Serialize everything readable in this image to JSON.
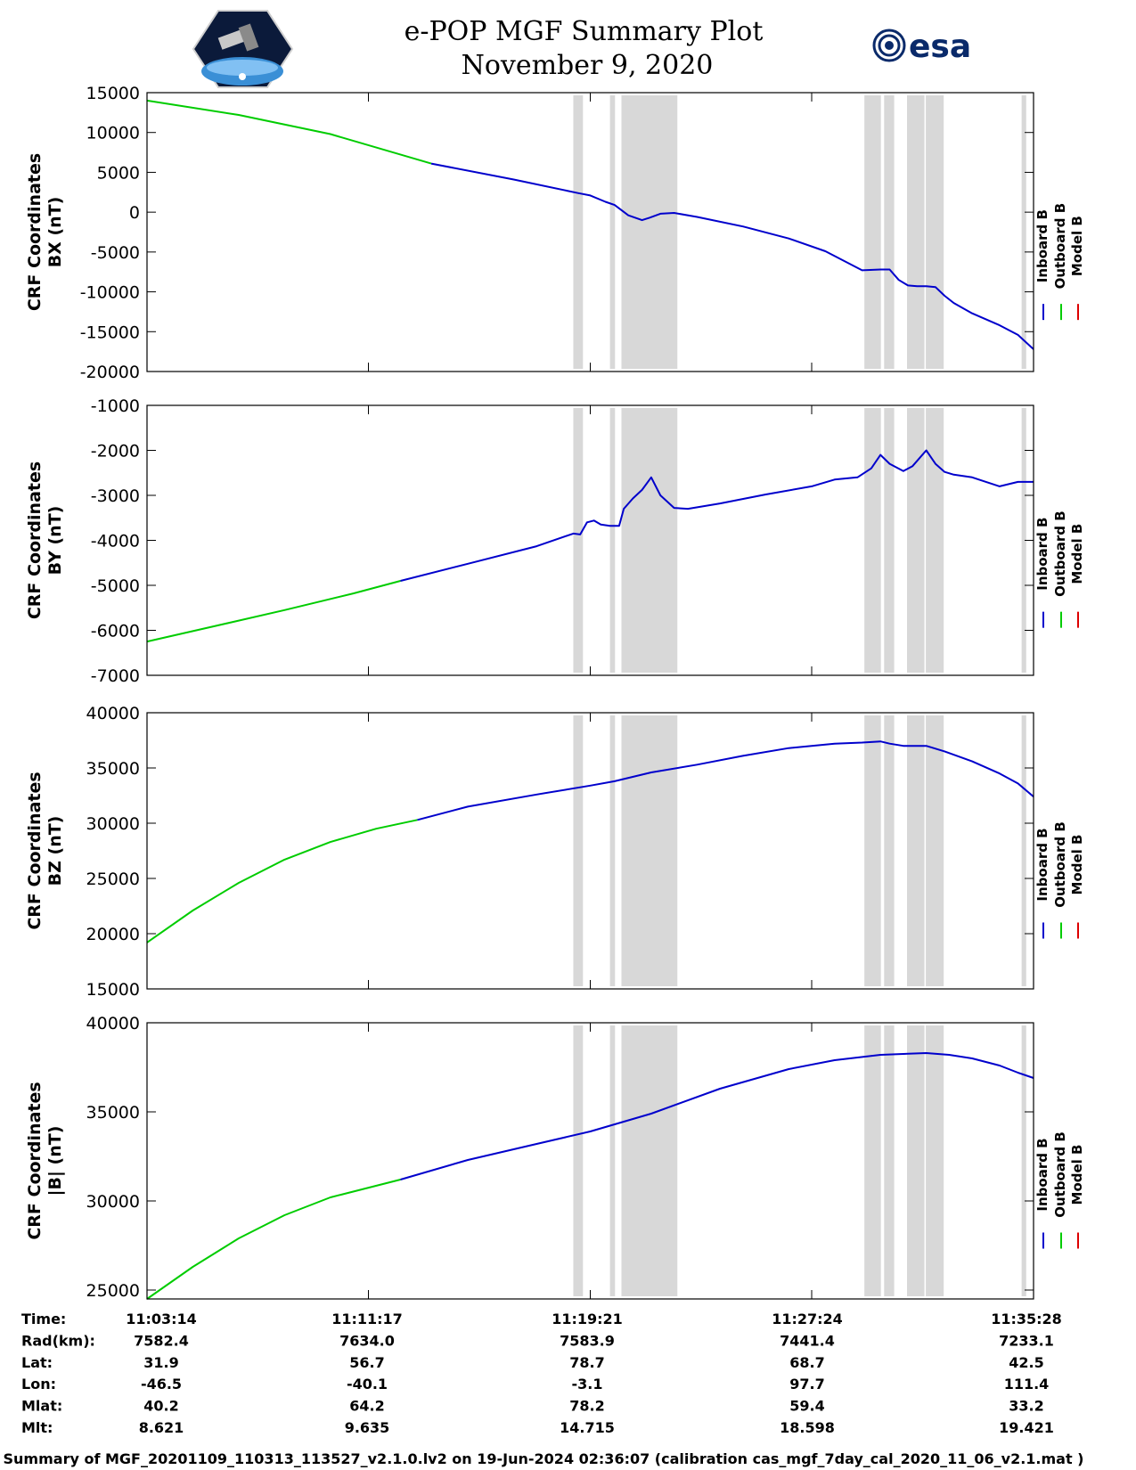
{
  "header": {
    "title": "e-POP MGF Summary Plot",
    "date": "November 9, 2020",
    "left_logo": "cassiope-mission-logo",
    "right_logo_text": "esa"
  },
  "colors": {
    "inboard": "#0000cc",
    "outboard": "#00cc00",
    "model": "#dd0000",
    "gap": "#d8d8d8",
    "frame": "#000000"
  },
  "chart_data": [
    {
      "type": "line",
      "ylabel_line1": "CRF Coordinates",
      "ylabel_line2": "BX (nT)",
      "ylim": [
        -20000,
        15000
      ],
      "yticks": [
        -20000,
        -15000,
        -10000,
        -5000,
        0,
        5000,
        10000,
        15000
      ],
      "ytick_labels": [
        "-20000",
        "-15000",
        "-10000",
        "-5000",
        "0",
        "5000",
        "10000",
        "15000"
      ],
      "xlim": [
        0,
        1934
      ],
      "xticks": [
        0,
        483,
        967,
        1450,
        1934
      ],
      "legend": [
        "Inboard B",
        "Outboard B",
        "Model B"
      ],
      "series": [
        {
          "name": "Outboard B",
          "x": [
            0,
            200,
            400,
            620
          ],
          "values": [
            14000,
            12200,
            9800,
            6100
          ]
        },
        {
          "name": "Inboard B",
          "x": [
            620,
            800,
            940,
            967,
            1000,
            1020,
            1050,
            1080,
            1096,
            1120,
            1150,
            1200,
            1300,
            1400,
            1480,
            1560,
            1600,
            1620,
            1640,
            1660,
            1680,
            1700,
            1720,
            1740,
            1760,
            1800,
            1860,
            1900,
            1934
          ],
          "values": [
            6100,
            4100,
            2400,
            2100,
            1300,
            900,
            -400,
            -1000,
            -700,
            -200,
            -100,
            -600,
            -1800,
            -3300,
            -4900,
            -7300,
            -7200,
            -7200,
            -8500,
            -9200,
            -9300,
            -9300,
            -9400,
            -10500,
            -11400,
            -12700,
            -14200,
            -15400,
            -17200
          ]
        }
      ],
      "gap_bands": [
        [
          930,
          951
        ],
        [
          1010,
          1021
        ],
        [
          1035,
          1157
        ],
        [
          1565,
          1601
        ],
        [
          1608,
          1630
        ],
        [
          1658,
          1696
        ],
        [
          1699,
          1738
        ],
        [
          1908,
          1918
        ]
      ]
    },
    {
      "type": "line",
      "ylabel_line1": "CRF Coordinates",
      "ylabel_line2": "BY (nT)",
      "ylim": [
        -7000,
        -1000
      ],
      "yticks": [
        -7000,
        -6000,
        -5000,
        -4000,
        -3000,
        -2000,
        -1000
      ],
      "ytick_labels": [
        "-7000",
        "-6000",
        "-5000",
        "-4000",
        "-3000",
        "-2000",
        "-1000"
      ],
      "xlim": [
        0,
        1934
      ],
      "xticks": [
        0,
        483,
        967,
        1450,
        1934
      ],
      "legend": [
        "Inboard B",
        "Outboard B",
        "Model B"
      ],
      "series": [
        {
          "name": "Outboard B",
          "x": [
            0,
            150,
            300,
            450,
            553
          ],
          "values": [
            -6250,
            -5900,
            -5550,
            -5180,
            -4900
          ]
        },
        {
          "name": "Inboard B",
          "x": [
            553,
            700,
            850,
            930,
            945,
            960,
            975,
            990,
            1010,
            1030,
            1040,
            1060,
            1080,
            1100,
            1120,
            1150,
            1180,
            1250,
            1350,
            1450,
            1500,
            1550,
            1580,
            1600,
            1620,
            1650,
            1670,
            1700,
            1720,
            1740,
            1760,
            1800,
            1860,
            1900,
            1934
          ],
          "values": [
            -4900,
            -4520,
            -4130,
            -3850,
            -3870,
            -3600,
            -3560,
            -3650,
            -3680,
            -3680,
            -3300,
            -3070,
            -2880,
            -2600,
            -3000,
            -3280,
            -3300,
            -3180,
            -2980,
            -2800,
            -2650,
            -2600,
            -2400,
            -2100,
            -2300,
            -2460,
            -2350,
            -2000,
            -2300,
            -2480,
            -2540,
            -2600,
            -2800,
            -2700,
            -2700
          ]
        }
      ],
      "gap_bands": [
        [
          930,
          951
        ],
        [
          1010,
          1021
        ],
        [
          1035,
          1157
        ],
        [
          1565,
          1601
        ],
        [
          1608,
          1630
        ],
        [
          1658,
          1696
        ],
        [
          1699,
          1738
        ],
        [
          1908,
          1918
        ]
      ]
    },
    {
      "type": "line",
      "ylabel_line1": "CRF Coordinates",
      "ylabel_line2": "BZ (nT)",
      "ylim": [
        15000,
        40000
      ],
      "yticks": [
        15000,
        20000,
        25000,
        30000,
        35000,
        40000
      ],
      "ytick_labels": [
        "15000",
        "20000",
        "25000",
        "30000",
        "35000",
        "40000"
      ],
      "xlim": [
        0,
        1934
      ],
      "xticks": [
        0,
        483,
        967,
        1450,
        1934
      ],
      "legend": [
        "Inboard B",
        "Outboard B",
        "Model B"
      ],
      "series": [
        {
          "name": "Outboard B",
          "x": [
            0,
            100,
            200,
            300,
            400,
            500,
            590
          ],
          "values": [
            19200,
            22100,
            24600,
            26700,
            28300,
            29500,
            30300
          ]
        },
        {
          "name": "Inboard B",
          "x": [
            590,
            700,
            850,
            967,
            1020,
            1100,
            1200,
            1300,
            1400,
            1500,
            1560,
            1600,
            1620,
            1650,
            1700,
            1740,
            1800,
            1860,
            1900,
            1934
          ],
          "values": [
            30300,
            31500,
            32600,
            33400,
            33800,
            34600,
            35300,
            36100,
            36800,
            37200,
            37300,
            37400,
            37200,
            37000,
            37000,
            36500,
            35600,
            34500,
            33600,
            32400
          ]
        }
      ],
      "gap_bands": [
        [
          930,
          951
        ],
        [
          1010,
          1021
        ],
        [
          1035,
          1157
        ],
        [
          1565,
          1601
        ],
        [
          1608,
          1630
        ],
        [
          1658,
          1696
        ],
        [
          1699,
          1738
        ],
        [
          1908,
          1918
        ]
      ]
    },
    {
      "type": "line",
      "ylabel_line1": "CRF Coordinates",
      "ylabel_line2": "|B| (nT)",
      "ylim": [
        24500,
        40000
      ],
      "yticks": [
        25000,
        30000,
        35000,
        40000
      ],
      "ytick_labels": [
        "25000",
        "30000",
        "35000",
        "40000"
      ],
      "xlim": [
        0,
        1934
      ],
      "xticks": [
        0,
        483,
        967,
        1450,
        1934
      ],
      "legend": [
        "Inboard B",
        "Outboard B",
        "Model B"
      ],
      "series": [
        {
          "name": "Outboard B",
          "x": [
            0,
            100,
            200,
            300,
            400,
            553
          ],
          "values": [
            24500,
            26300,
            27900,
            29200,
            30200,
            31200
          ]
        },
        {
          "name": "Inboard B",
          "x": [
            553,
            700,
            850,
            967,
            1100,
            1250,
            1400,
            1500,
            1600,
            1700,
            1750,
            1800,
            1860,
            1900,
            1934
          ],
          "values": [
            31200,
            32300,
            33200,
            33900,
            34900,
            36300,
            37400,
            37900,
            38200,
            38300,
            38200,
            38000,
            37600,
            37200,
            36900
          ]
        }
      ],
      "gap_bands": [
        [
          930,
          951
        ],
        [
          1010,
          1021
        ],
        [
          1035,
          1157
        ],
        [
          1565,
          1601
        ],
        [
          1608,
          1630
        ],
        [
          1658,
          1696
        ],
        [
          1699,
          1738
        ],
        [
          1908,
          1918
        ]
      ]
    }
  ],
  "info_table": {
    "rows": [
      {
        "label": "Time:",
        "values": [
          "11:03:14",
          "11:11:17",
          "11:19:21",
          "11:27:24",
          "11:35:28"
        ]
      },
      {
        "label": "Rad(km):",
        "values": [
          "7582.4",
          "7634.0",
          "7583.9",
          "7441.4",
          "7233.1"
        ]
      },
      {
        "label": "Lat:",
        "values": [
          "31.9",
          "56.7",
          "78.7",
          "68.7",
          "42.5"
        ]
      },
      {
        "label": "Lon:",
        "values": [
          "-46.5",
          "-40.1",
          "-3.1",
          "97.7",
          "111.4"
        ]
      },
      {
        "label": "Mlat:",
        "values": [
          "40.2",
          "64.2",
          "78.2",
          "59.4",
          "33.2"
        ]
      },
      {
        "label": "Mlt:",
        "values": [
          "8.621",
          "9.635",
          "14.715",
          "18.598",
          "19.421"
        ]
      }
    ]
  },
  "footer": {
    "text": "Summary of MGF_20201109_110313_113527_v2.1.0.lv2 on 19-Jun-2024 02:36:07 (calibration cas_mgf_7day_cal_2020_11_06_v2.1.mat )"
  }
}
